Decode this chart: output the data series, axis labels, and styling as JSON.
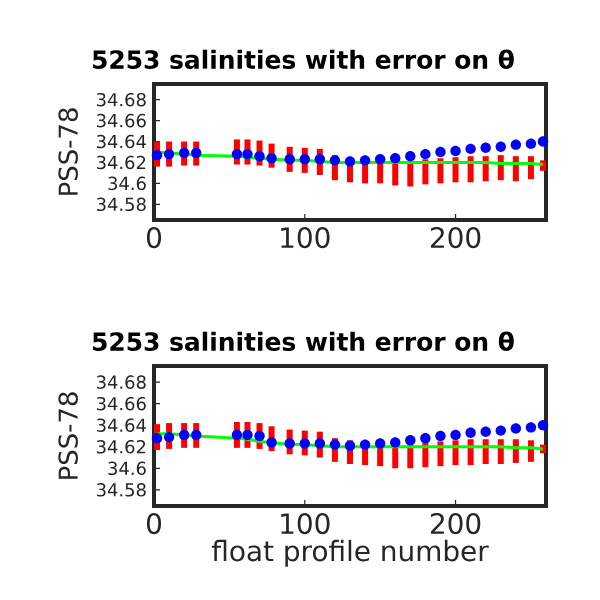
{
  "chart_data": [
    {
      "type": "line",
      "title": "5253 salinities with error on θ",
      "ylabel": "PSS-78",
      "x": [
        2,
        10,
        20,
        28,
        55,
        62,
        70,
        78,
        90,
        100,
        110,
        120,
        130,
        140,
        150,
        160,
        170,
        180,
        190,
        200,
        210,
        220,
        230,
        240,
        250,
        258
      ],
      "xlim": [
        0,
        260
      ],
      "xticks": [
        0,
        100,
        200
      ],
      "ylim": [
        34.565,
        34.695
      ],
      "yticks": [
        34.58,
        34.6,
        34.62,
        34.64,
        34.66,
        34.68
      ],
      "series": [
        {
          "type": "bar",
          "color": "#ff0000",
          "base": [
            34.616,
            34.616,
            34.617,
            34.617,
            34.618,
            34.618,
            34.617,
            34.615,
            34.611,
            34.61,
            34.608,
            34.603,
            34.601,
            34.6,
            34.6,
            34.598,
            34.597,
            34.599,
            34.6,
            34.601,
            34.601,
            34.602,
            34.603,
            34.602,
            34.604,
            34.612
          ],
          "values": [
            0.024,
            0.024,
            0.023,
            0.023,
            0.024,
            0.024,
            0.024,
            0.023,
            0.024,
            0.024,
            0.025,
            0.024,
            0.024,
            0.024,
            0.024,
            0.024,
            0.024,
            0.024,
            0.024,
            0.024,
            0.025,
            0.024,
            0.024,
            0.024,
            0.022,
            0.01
          ]
        },
        {
          "color": "#00ff00",
          "values": [
            34.63,
            34.629,
            34.628,
            34.627,
            34.626,
            34.625,
            34.624,
            34.623,
            34.622,
            34.622,
            34.621,
            34.62,
            34.62,
            34.62,
            34.62,
            34.62,
            34.62,
            34.62,
            34.62,
            34.62,
            34.62,
            34.62,
            34.619,
            34.619,
            34.619,
            34.618
          ]
        },
        {
          "type": "scatter",
          "color": "#0000ff",
          "marker": "circle",
          "values": [
            34.627,
            34.628,
            34.629,
            34.629,
            34.628,
            34.628,
            34.626,
            34.624,
            34.623,
            34.623,
            34.623,
            34.622,
            34.621,
            34.622,
            34.623,
            34.624,
            34.626,
            34.628,
            34.63,
            34.631,
            34.633,
            34.634,
            34.635,
            34.637,
            34.638,
            34.64
          ]
        }
      ]
    },
    {
      "type": "line",
      "title": "5253 salinities with error on θ",
      "ylabel": "PSS-78",
      "xlabel": "float profile number",
      "x": [
        2,
        10,
        20,
        28,
        55,
        62,
        70,
        78,
        90,
        100,
        110,
        120,
        130,
        140,
        150,
        160,
        170,
        180,
        190,
        200,
        210,
        220,
        230,
        240,
        250,
        258
      ],
      "xlim": [
        0,
        260
      ],
      "xticks": [
        0,
        100,
        200
      ],
      "ylim": [
        34.565,
        34.695
      ],
      "yticks": [
        34.58,
        34.6,
        34.62,
        34.64,
        34.66,
        34.68
      ],
      "series": [
        {
          "type": "bar",
          "color": "#ff0000",
          "base": [
            34.617,
            34.618,
            34.619,
            34.619,
            34.619,
            34.619,
            34.618,
            34.616,
            34.613,
            34.612,
            34.61,
            34.606,
            34.604,
            34.603,
            34.602,
            34.6,
            34.6,
            34.601,
            34.602,
            34.603,
            34.603,
            34.604,
            34.604,
            34.605,
            34.606,
            34.614
          ],
          "values": [
            0.024,
            0.024,
            0.023,
            0.023,
            0.024,
            0.024,
            0.024,
            0.023,
            0.023,
            0.023,
            0.024,
            0.022,
            0.022,
            0.022,
            0.022,
            0.023,
            0.023,
            0.023,
            0.023,
            0.023,
            0.024,
            0.023,
            0.023,
            0.022,
            0.02,
            0.008
          ]
        },
        {
          "color": "#00ff00",
          "values": [
            34.632,
            34.632,
            34.631,
            34.63,
            34.628,
            34.627,
            34.625,
            34.624,
            34.622,
            34.622,
            34.621,
            34.62,
            34.62,
            34.62,
            34.62,
            34.62,
            34.62,
            34.62,
            34.62,
            34.62,
            34.62,
            34.62,
            34.62,
            34.619,
            34.619,
            34.618
          ]
        },
        {
          "type": "scatter",
          "color": "#0000ff",
          "marker": "circle",
          "values": [
            34.628,
            34.629,
            34.631,
            34.631,
            34.631,
            34.631,
            34.63,
            34.624,
            34.623,
            34.623,
            34.623,
            34.622,
            34.621,
            34.622,
            34.623,
            34.624,
            34.626,
            34.628,
            34.63,
            34.631,
            34.633,
            34.634,
            34.635,
            34.637,
            34.638,
            34.64
          ]
        }
      ]
    }
  ]
}
